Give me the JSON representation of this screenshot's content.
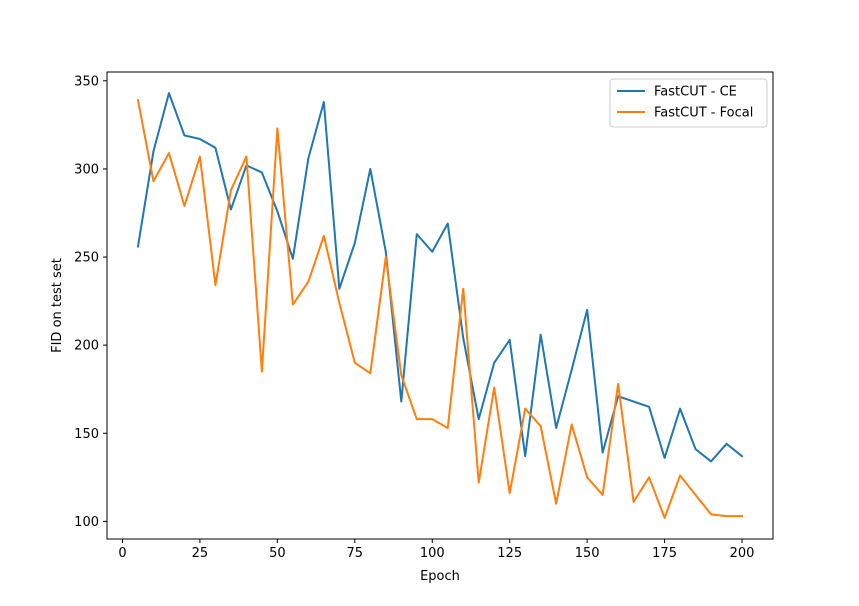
{
  "chart_data": {
    "type": "line",
    "title": "",
    "xlabel": "Epoch",
    "ylabel": "FID on test set",
    "xlim": [
      -5,
      210
    ],
    "ylim": [
      90,
      355
    ],
    "xticks": [
      0,
      25,
      50,
      75,
      100,
      125,
      150,
      175,
      200
    ],
    "yticks": [
      100,
      150,
      200,
      250,
      300,
      350
    ],
    "grid": false,
    "legend_position": "top-right",
    "x": [
      5,
      10,
      15,
      20,
      25,
      30,
      35,
      40,
      45,
      50,
      55,
      60,
      65,
      70,
      75,
      80,
      85,
      90,
      95,
      100,
      105,
      110,
      115,
      120,
      125,
      130,
      135,
      140,
      145,
      150,
      155,
      160,
      165,
      170,
      175,
      180,
      185,
      190,
      195,
      200
    ],
    "series": [
      {
        "name": "FastCUT - CE",
        "color": "#1f77b4",
        "values": [
          256,
          310,
          343,
          319,
          317,
          312,
          277,
          302,
          298,
          276,
          249,
          306,
          338,
          232,
          258,
          300,
          253,
          168,
          263,
          253,
          269,
          204,
          158,
          190,
          203,
          137,
          206,
          153,
          186,
          220,
          139,
          171,
          168,
          165,
          136,
          164,
          141,
          134,
          144,
          137
        ]
      },
      {
        "name": "FastCUT - Focal",
        "color": "#ff7f0e",
        "values": [
          339,
          293,
          309,
          279,
          307,
          234,
          288,
          307,
          185,
          323,
          223,
          236,
          262,
          224,
          190,
          184,
          250,
          183,
          158,
          158,
          153,
          232,
          122,
          176,
          116,
          164,
          154,
          110,
          155,
          125,
          115,
          178,
          111,
          125,
          102,
          126,
          115,
          104,
          103,
          103
        ]
      }
    ]
  }
}
